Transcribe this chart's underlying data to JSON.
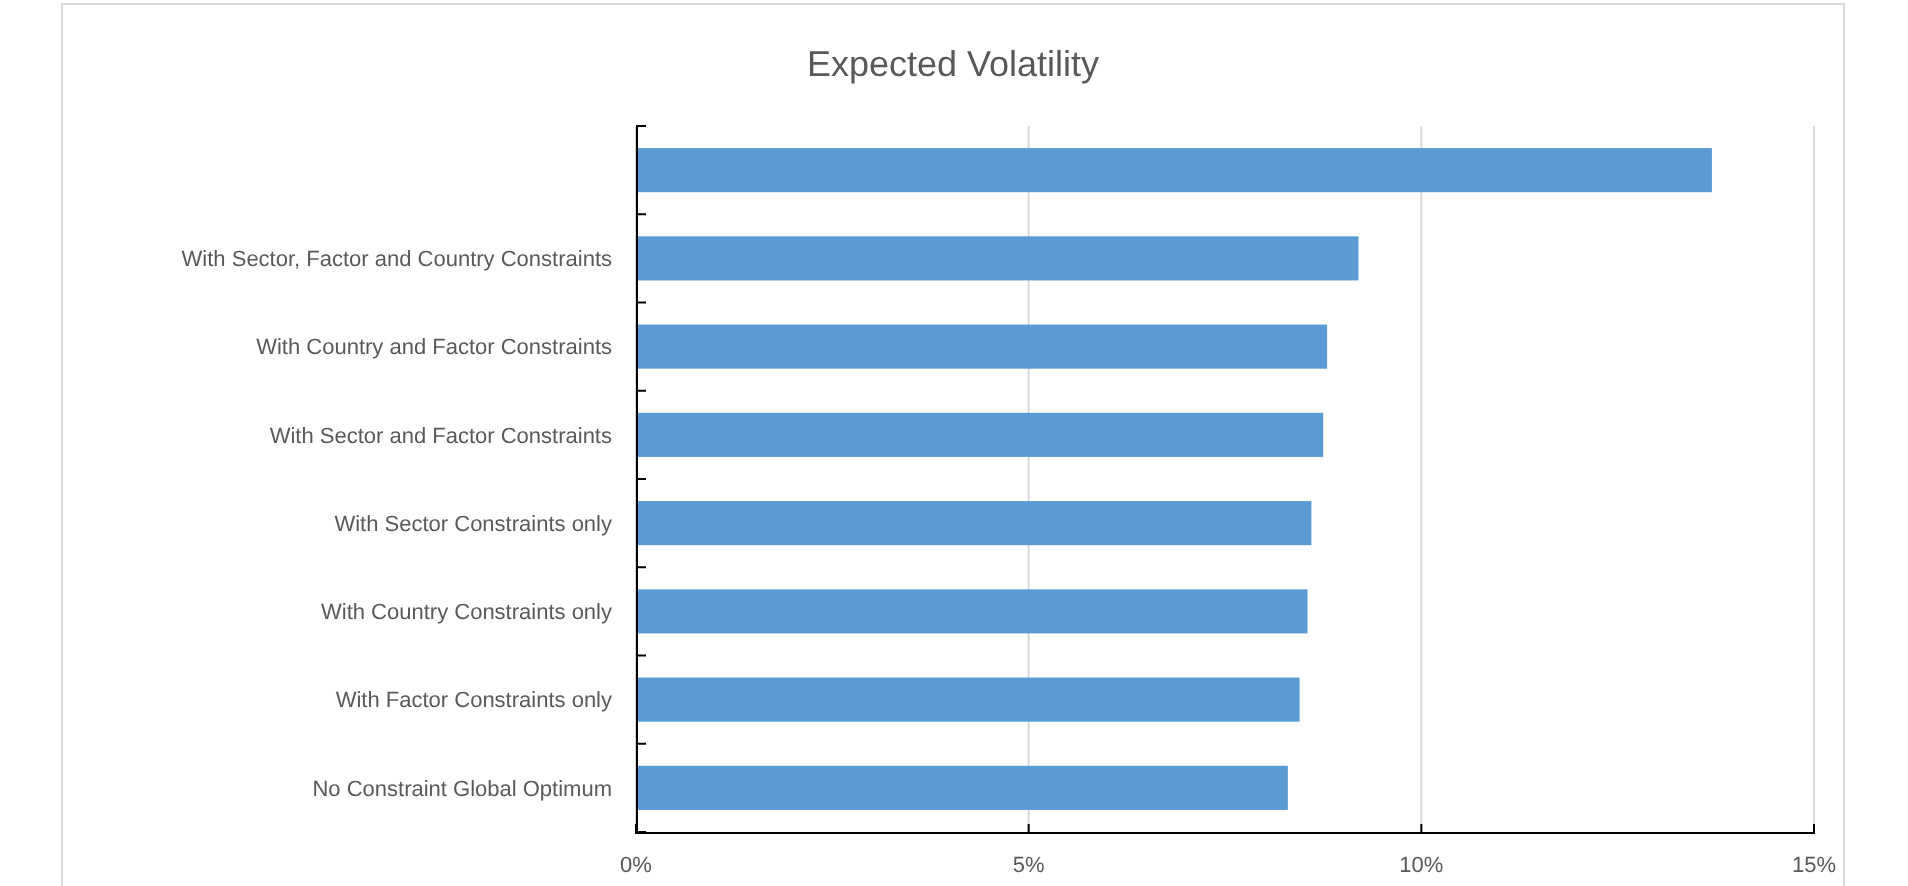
{
  "chart_data": {
    "type": "bar",
    "orientation": "horizontal",
    "title": "Expected Volatility",
    "categories": [
      null,
      "With Sector, Factor and Country Constraints",
      "With Country and Factor Constraints",
      "With Sector and Factor Constraints",
      "With Sector Constraints only",
      "With Country Constraints only",
      "With Factor Constraints only",
      "No Constraint Global Optimum"
    ],
    "values": [
      13.7,
      9.2,
      8.8,
      8.75,
      8.6,
      8.55,
      8.45,
      8.3
    ],
    "color": "#5b9bd5",
    "xlim": [
      0,
      15
    ],
    "xticks": [
      {
        "value": 0,
        "label": "0%"
      },
      {
        "value": 5,
        "label": "5%"
      },
      {
        "value": 10,
        "label": "10%"
      },
      {
        "value": 15,
        "label": "15%"
      }
    ],
    "grid": "x"
  }
}
